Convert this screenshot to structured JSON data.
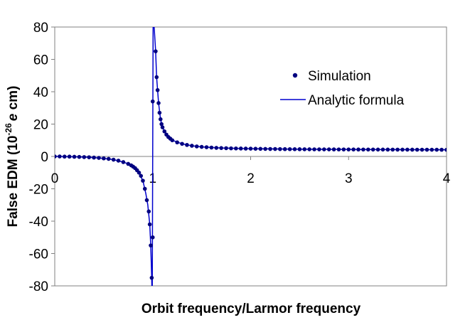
{
  "chart_data": {
    "type": "scatter",
    "title": "",
    "xlabel": "Orbit frequency/Larmor frequency",
    "ylabel_parts": {
      "prefix": "False EDM (10",
      "exponent": "-26",
      "italic": "e",
      "suffix": " cm)"
    },
    "xlim": [
      0,
      4
    ],
    "ylim": [
      -80,
      80
    ],
    "x_ticks": [
      0,
      1,
      2,
      3,
      4
    ],
    "y_ticks": [
      80,
      60,
      40,
      20,
      0,
      -20,
      -40,
      -60,
      -80
    ],
    "x_tick_labels": [
      "0",
      "1",
      "2",
      "3",
      "4"
    ],
    "y_tick_labels": [
      "80",
      "60",
      "40",
      "20",
      "0",
      "-20",
      "-40",
      "-60",
      "-80"
    ],
    "grid": false,
    "legend_position": "top-right",
    "series": [
      {
        "name": "Simulation",
        "kind": "markers",
        "color": "#000080",
        "points": [
          [
            0.0,
            0.0
          ],
          [
            0.05,
            0.0
          ],
          [
            0.1,
            -0.1
          ],
          [
            0.15,
            -0.1
          ],
          [
            0.2,
            -0.2
          ],
          [
            0.25,
            -0.3
          ],
          [
            0.3,
            -0.4
          ],
          [
            0.35,
            -0.5
          ],
          [
            0.4,
            -0.7
          ],
          [
            0.45,
            -0.9
          ],
          [
            0.5,
            -1.2
          ],
          [
            0.55,
            -1.5
          ],
          [
            0.6,
            -2.0
          ],
          [
            0.65,
            -2.6
          ],
          [
            0.7,
            -3.5
          ],
          [
            0.75,
            -4.6
          ],
          [
            0.78,
            -5.5
          ],
          [
            0.8,
            -6.3
          ],
          [
            0.82,
            -7.2
          ],
          [
            0.84,
            -8.5
          ],
          [
            0.86,
            -10.0
          ],
          [
            0.88,
            -12.0
          ],
          [
            0.9,
            -15.0
          ],
          [
            0.92,
            -20.0
          ],
          [
            0.94,
            -27.0
          ],
          [
            0.96,
            -34.0
          ],
          [
            0.97,
            -42.0
          ],
          [
            0.98,
            -55.0
          ],
          [
            0.99,
            -75.0
          ],
          [
            1.0,
            -50.0
          ],
          [
            1.0,
            34.0
          ],
          [
            1.03,
            65.0
          ],
          [
            1.04,
            49.0
          ],
          [
            1.05,
            41.0
          ],
          [
            1.06,
            33.0
          ],
          [
            1.07,
            27.0
          ],
          [
            1.08,
            23.0
          ],
          [
            1.09,
            20.0
          ],
          [
            1.1,
            18.0
          ],
          [
            1.12,
            15.5
          ],
          [
            1.14,
            13.5
          ],
          [
            1.16,
            12.0
          ],
          [
            1.18,
            11.0
          ],
          [
            1.2,
            10.0
          ],
          [
            1.25,
            8.7
          ],
          [
            1.3,
            7.8
          ],
          [
            1.35,
            7.1
          ],
          [
            1.4,
            6.6
          ],
          [
            1.45,
            6.2
          ],
          [
            1.5,
            5.9
          ],
          [
            1.55,
            5.7
          ],
          [
            1.6,
            5.5
          ],
          [
            1.65,
            5.3
          ],
          [
            1.7,
            5.2
          ],
          [
            1.75,
            5.1
          ],
          [
            1.8,
            5.0
          ],
          [
            1.85,
            4.95
          ],
          [
            1.9,
            4.9
          ],
          [
            1.95,
            4.85
          ],
          [
            2.0,
            4.8
          ],
          [
            2.05,
            4.75
          ],
          [
            2.1,
            4.7
          ],
          [
            2.15,
            4.65
          ],
          [
            2.2,
            4.6
          ],
          [
            2.25,
            4.58
          ],
          [
            2.3,
            4.55
          ],
          [
            2.35,
            4.52
          ],
          [
            2.4,
            4.5
          ],
          [
            2.45,
            4.48
          ],
          [
            2.5,
            4.46
          ],
          [
            2.55,
            4.44
          ],
          [
            2.6,
            4.42
          ],
          [
            2.65,
            4.4
          ],
          [
            2.7,
            4.38
          ],
          [
            2.75,
            4.37
          ],
          [
            2.8,
            4.36
          ],
          [
            2.85,
            4.35
          ],
          [
            2.9,
            4.34
          ],
          [
            2.95,
            4.33
          ],
          [
            3.0,
            4.32
          ],
          [
            3.05,
            4.31
          ],
          [
            3.1,
            4.3
          ],
          [
            3.15,
            4.29
          ],
          [
            3.2,
            4.28
          ],
          [
            3.25,
            4.27
          ],
          [
            3.3,
            4.26
          ],
          [
            3.35,
            4.25
          ],
          [
            3.4,
            4.24
          ],
          [
            3.45,
            4.23
          ],
          [
            3.5,
            4.22
          ],
          [
            3.55,
            4.21
          ],
          [
            3.6,
            4.2
          ],
          [
            3.65,
            4.19
          ],
          [
            3.7,
            4.18
          ],
          [
            3.75,
            4.17
          ],
          [
            3.8,
            4.16
          ],
          [
            3.85,
            4.15
          ],
          [
            3.9,
            4.14
          ],
          [
            3.95,
            4.13
          ],
          [
            4.0,
            4.12
          ]
        ]
      },
      {
        "name": "Analytic formula",
        "kind": "line",
        "color": "#0000CD",
        "points": [
          [
            0.0,
            0.0
          ],
          [
            0.1,
            -0.1
          ],
          [
            0.2,
            -0.2
          ],
          [
            0.3,
            -0.4
          ],
          [
            0.4,
            -0.7
          ],
          [
            0.5,
            -1.2
          ],
          [
            0.6,
            -2.0
          ],
          [
            0.7,
            -3.5
          ],
          [
            0.75,
            -4.6
          ],
          [
            0.8,
            -6.3
          ],
          [
            0.85,
            -9.2
          ],
          [
            0.9,
            -15.0
          ],
          [
            0.93,
            -23.0
          ],
          [
            0.95,
            -30.0
          ],
          [
            0.97,
            -42.0
          ],
          [
            0.98,
            -55.0
          ],
          [
            0.99,
            -75.0
          ],
          [
            0.995,
            -95.0
          ],
          [
            1.005,
            95.0
          ],
          [
            1.01,
            85.0
          ],
          [
            1.02,
            75.0
          ],
          [
            1.03,
            65.0
          ],
          [
            1.04,
            49.0
          ],
          [
            1.05,
            41.0
          ],
          [
            1.06,
            33.0
          ],
          [
            1.08,
            23.0
          ],
          [
            1.1,
            18.0
          ],
          [
            1.15,
            12.7
          ],
          [
            1.2,
            10.0
          ],
          [
            1.3,
            7.8
          ],
          [
            1.4,
            6.6
          ],
          [
            1.5,
            5.9
          ],
          [
            1.7,
            5.2
          ],
          [
            2.0,
            4.8
          ],
          [
            2.5,
            4.46
          ],
          [
            3.0,
            4.32
          ],
          [
            3.5,
            4.22
          ],
          [
            4.0,
            4.12
          ]
        ]
      }
    ]
  }
}
